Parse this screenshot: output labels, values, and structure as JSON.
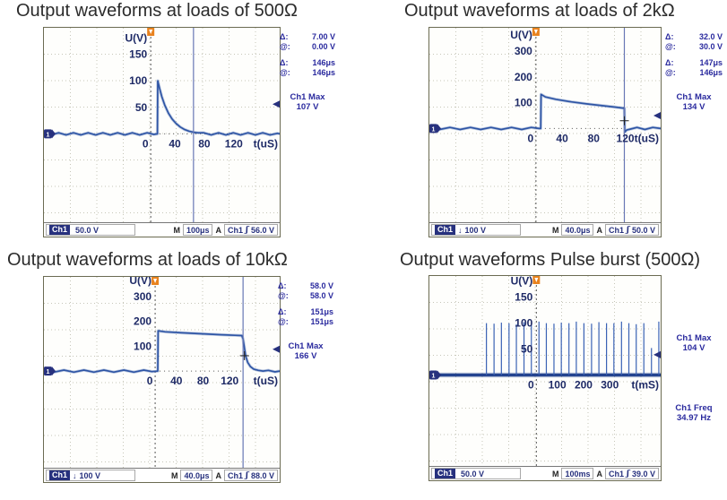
{
  "panels": [
    {
      "title": "Output waveforms at loads of 500Ω",
      "readouts": {
        "delta_sym": "Δ:",
        "at_sym": "@:",
        "delta_v": "7.00 V",
        "at_v": "0.00 V",
        "delta_t": "146μs",
        "at_t": "146μs"
      },
      "measurement": {
        "label": "Ch1 Max",
        "value": "107 V"
      },
      "status": {
        "ch": "Ch1",
        "coupling": "",
        "scale": "50.0 V",
        "m": "M",
        "timebase": "100μs",
        "a": "A",
        "trig_src": "Ch1",
        "slope": "ʃ",
        "trig_level": "56.0 V"
      }
    },
    {
      "title": "Output waveforms at loads of 2kΩ",
      "readouts": {
        "delta_sym": "Δ:",
        "at_sym": "@:",
        "delta_v": "32.0 V",
        "at_v": "30.0 V",
        "delta_t": "147μs",
        "at_t": "146μs"
      },
      "measurement": {
        "label": "Ch1 Max",
        "value": "134 V"
      },
      "status": {
        "ch": "Ch1",
        "coupling": "↓",
        "scale": "100 V",
        "m": "M",
        "timebase": "40.0μs",
        "a": "A",
        "trig_src": "Ch1",
        "slope": "ʃ",
        "trig_level": "50.0 V"
      }
    },
    {
      "title": "Output waveforms at loads of 10kΩ",
      "readouts": {
        "delta_sym": "Δ:",
        "at_sym": "@:",
        "delta_v": "58.0 V",
        "at_v": "58.0 V",
        "delta_t": "151μs",
        "at_t": "151μs"
      },
      "measurement": {
        "label": "Ch1 Max",
        "value": "166 V"
      },
      "status": {
        "ch": "Ch1",
        "coupling": "↓",
        "scale": "100 V",
        "m": "M",
        "timebase": "40.0μs",
        "a": "A",
        "trig_src": "Ch1",
        "slope": "ʃ",
        "trig_level": "88.0 V"
      }
    },
    {
      "title": "Output waveforms Pulse burst (500Ω)",
      "measurement": {
        "label": "Ch1 Max",
        "value": "104 V"
      },
      "measurement2": {
        "label": "Ch1 Freq",
        "value": "34.97 Hz"
      },
      "status": {
        "ch": "Ch1",
        "coupling": "",
        "scale": "50.0 V",
        "m": "M",
        "timebase": "100ms",
        "a": "A",
        "trig_src": "Ch1",
        "slope": "ʃ",
        "trig_level": "39.0 V"
      }
    }
  ],
  "colors": {
    "waveform": "#2e55a5",
    "annotation": "#2a2a9e",
    "trigger_marker": "#e8821e",
    "channel_marker": "#27317e"
  },
  "chart_data": [
    {
      "type": "line",
      "title": "Output waveforms at loads of 500Ω",
      "ylabel": "U(V)",
      "xlabel": "t(uS)",
      "y_ticks": [
        150,
        100,
        50
      ],
      "x_ticks": [
        0,
        40,
        80,
        120
      ],
      "x_range": [
        -145,
        175
      ],
      "y_range": [
        -170,
        200
      ],
      "volts_per_div": 50,
      "time_per_div_label": "100μs",
      "ch1_max_v": 107,
      "trig_level": 56,
      "cursor_t": 58,
      "points": [
        [
          -145,
          2
        ],
        [
          -135,
          -2
        ],
        [
          -125,
          2
        ],
        [
          -115,
          -2
        ],
        [
          -105,
          2
        ],
        [
          -95,
          -2
        ],
        [
          -85,
          2
        ],
        [
          -75,
          -2
        ],
        [
          -65,
          2
        ],
        [
          -55,
          -2
        ],
        [
          -45,
          2
        ],
        [
          -35,
          -2
        ],
        [
          -25,
          2
        ],
        [
          -15,
          -2
        ],
        [
          -5,
          2
        ],
        [
          4,
          -1
        ],
        [
          9,
          0
        ],
        [
          9.5,
          100
        ],
        [
          12,
          86
        ],
        [
          15,
          70
        ],
        [
          19,
          54
        ],
        [
          24,
          39
        ],
        [
          29,
          28
        ],
        [
          34,
          20
        ],
        [
          40,
          13
        ],
        [
          46,
          8
        ],
        [
          52,
          5
        ],
        [
          58,
          3
        ],
        [
          64,
          2
        ],
        [
          72,
          2
        ],
        [
          82,
          -2
        ],
        [
          92,
          2
        ],
        [
          102,
          -2
        ],
        [
          112,
          2
        ],
        [
          122,
          -2
        ],
        [
          132,
          2
        ],
        [
          142,
          -2
        ],
        [
          152,
          2
        ],
        [
          162,
          -2
        ],
        [
          172,
          1
        ],
        [
          175,
          0
        ]
      ]
    },
    {
      "type": "line",
      "title": "Output waveforms at loads of 2kΩ",
      "ylabel": "U(V)",
      "xlabel": "t(uS)",
      "y_ticks": [
        300,
        200,
        100
      ],
      "x_ticks": [
        0,
        40,
        80,
        120
      ],
      "x_range": [
        -135,
        158
      ],
      "y_range": [
        -370,
        390
      ],
      "volts_per_div": 100,
      "time_per_div_label": "40.0μs",
      "ch1_max_v": 134,
      "trig_level": 50,
      "cursor_t": 112,
      "cross": [
        112,
        30
      ],
      "points": [
        [
          -135,
          4
        ],
        [
          -122,
          -4
        ],
        [
          -109,
          4
        ],
        [
          -96,
          -4
        ],
        [
          -83,
          4
        ],
        [
          -70,
          -4
        ],
        [
          -57,
          4
        ],
        [
          -44,
          -4
        ],
        [
          -31,
          4
        ],
        [
          -18,
          -4
        ],
        [
          -6,
          4
        ],
        [
          4,
          0
        ],
        [
          6,
          0
        ],
        [
          6.5,
          132
        ],
        [
          12,
          122
        ],
        [
          25,
          113
        ],
        [
          45,
          103
        ],
        [
          65,
          95
        ],
        [
          85,
          88
        ],
        [
          100,
          83
        ],
        [
          110,
          79
        ],
        [
          112,
          78
        ],
        [
          112.5,
          -14
        ],
        [
          115,
          -6
        ],
        [
          120,
          -2
        ],
        [
          128,
          4
        ],
        [
          138,
          -4
        ],
        [
          148,
          4
        ],
        [
          158,
          0
        ]
      ]
    },
    {
      "type": "line",
      "title": "Output waveforms at loads of 10kΩ",
      "ylabel": "U(V)",
      "xlabel": "t(uS)",
      "y_ticks": [
        300,
        200,
        100
      ],
      "x_ticks": [
        0,
        40,
        80,
        120
      ],
      "x_range": [
        -167,
        187
      ],
      "y_range": [
        -396,
        379
      ],
      "volts_per_div": 100,
      "time_per_div_label": "40.0μs",
      "ch1_max_v": 166,
      "trig_level": 88,
      "cursor_t": 132,
      "cross": [
        134,
        62
      ],
      "points": [
        [
          -167,
          4
        ],
        [
          -152,
          -4
        ],
        [
          -137,
          4
        ],
        [
          -122,
          -4
        ],
        [
          -107,
          4
        ],
        [
          -92,
          -4
        ],
        [
          -77,
          4
        ],
        [
          -62,
          -4
        ],
        [
          -47,
          4
        ],
        [
          -32,
          -4
        ],
        [
          -17,
          4
        ],
        [
          -5,
          -2
        ],
        [
          4,
          0
        ],
        [
          4.5,
          162
        ],
        [
          15,
          158
        ],
        [
          40,
          154
        ],
        [
          70,
          150
        ],
        [
          100,
          146
        ],
        [
          120,
          144
        ],
        [
          130,
          143
        ],
        [
          132,
          130
        ],
        [
          134,
          95
        ],
        [
          136,
          60
        ],
        [
          139,
          35
        ],
        [
          143,
          18
        ],
        [
          148,
          8
        ],
        [
          155,
          3
        ],
        [
          162,
          0
        ],
        [
          170,
          3
        ],
        [
          180,
          -3
        ],
        [
          187,
          0
        ]
      ]
    },
    {
      "type": "pulse",
      "title": "Output waveforms Pulse burst (500Ω)",
      "ylabel": "U(V)",
      "xlabel": "t(mS)",
      "y_ticks": [
        150,
        100,
        50
      ],
      "x_ticks": [
        0,
        100,
        200,
        300
      ],
      "x_range": [
        -407,
        473
      ],
      "y_range": [
        -179,
        191
      ],
      "volts_per_div": 50,
      "time_per_div_label": "100ms",
      "ch1_max_v": 104,
      "trig_level": 39,
      "freq_hz": 34.97,
      "pulses": [
        [
          -190,
          100
        ],
        [
          -161,
          99
        ],
        [
          -133,
          101
        ],
        [
          -104,
          100
        ],
        [
          -76,
          98
        ],
        [
          -47,
          102
        ],
        [
          -19,
          100
        ],
        [
          10,
          103
        ],
        [
          38,
          100
        ],
        [
          67,
          99
        ],
        [
          95,
          101
        ],
        [
          124,
          100
        ],
        [
          152,
          103
        ],
        [
          181,
          100
        ],
        [
          210,
          99
        ],
        [
          238,
          102
        ],
        [
          267,
          100
        ],
        [
          295,
          100
        ],
        [
          324,
          103
        ],
        [
          352,
          100
        ],
        [
          380,
          98
        ],
        [
          409,
          100
        ],
        [
          438,
          52
        ],
        [
          466,
          103
        ]
      ]
    }
  ]
}
